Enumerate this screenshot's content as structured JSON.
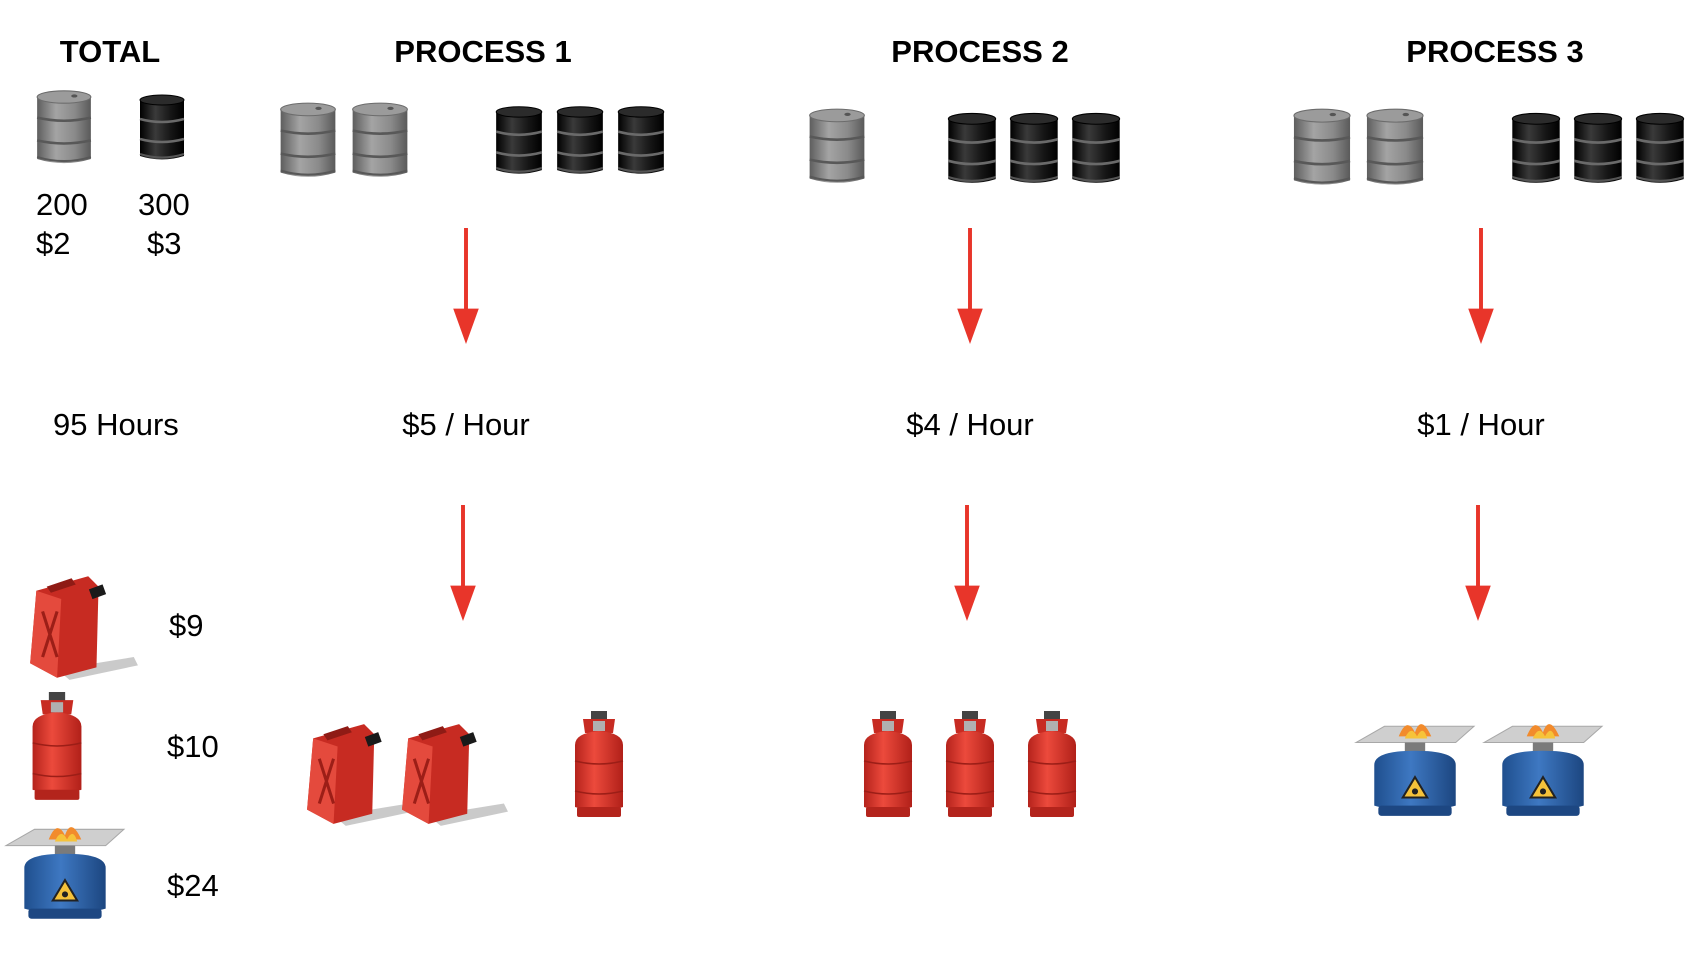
{
  "headers": {
    "total": "TOTAL",
    "process1": "PROCESS 1",
    "process2": "PROCESS 2",
    "process3": "PROCESS 3"
  },
  "total": {
    "gray_barrel": {
      "quantity": "200",
      "price": "$2"
    },
    "black_barrel": {
      "quantity": "300",
      "price": "$3"
    },
    "hours": "95 Hours",
    "products": [
      {
        "icon": "jerry-can-icon",
        "price": "$9"
      },
      {
        "icon": "gas-cylinder-icon",
        "price": "$10"
      },
      {
        "icon": "camping-stove-icon",
        "price": "$24"
      }
    ]
  },
  "processes": [
    {
      "name": "PROCESS 1",
      "gray_barrels": 2,
      "black_barrels": 3,
      "rate": "$5 / Hour",
      "outputs": {
        "jerry_cans": 2,
        "gas_cylinders": 1,
        "camping_stoves": 0
      }
    },
    {
      "name": "PROCESS 2",
      "gray_barrels": 1,
      "black_barrels": 3,
      "rate": "$4 / Hour",
      "outputs": {
        "jerry_cans": 0,
        "gas_cylinders": 3,
        "camping_stoves": 0
      }
    },
    {
      "name": "PROCESS 3",
      "gray_barrels": 2,
      "black_barrels": 3,
      "rate": "$1 / Hour",
      "outputs": {
        "jerry_cans": 0,
        "gas_cylinders": 0,
        "camping_stoves": 2
      }
    }
  ],
  "colors": {
    "arrow": "#e8352a",
    "gray_barrel": "#8a8a8a",
    "black_barrel": "#111111",
    "jerry_can": "#d9342b",
    "gas_cylinder": "#d9342b",
    "stove_canister": "#2f64a8"
  }
}
